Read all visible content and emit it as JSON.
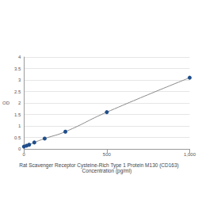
{
  "chart_data": {
    "type": "line",
    "title": "Rat Scavenger Receptor Cysteine-Rich Type 1 Protein M130 (CD163)",
    "xlabel": "Concentration (pg/ml)",
    "ylabel": "OD",
    "x": [
      0,
      15.6,
      31.25,
      62.5,
      125,
      250,
      500,
      1000
    ],
    "values": [
      0.1,
      0.14,
      0.18,
      0.28,
      0.45,
      0.75,
      1.6,
      3.1
    ],
    "color": "#1f4e8c",
    "marker": "circle",
    "xlim": [
      0,
      1000
    ],
    "xticks": [
      0,
      500,
      1000
    ],
    "ylim": [
      0,
      4
    ],
    "yticks": [
      0,
      0.5,
      1,
      1.5,
      2,
      2.5,
      3,
      3.5,
      4
    ],
    "grid": true
  }
}
